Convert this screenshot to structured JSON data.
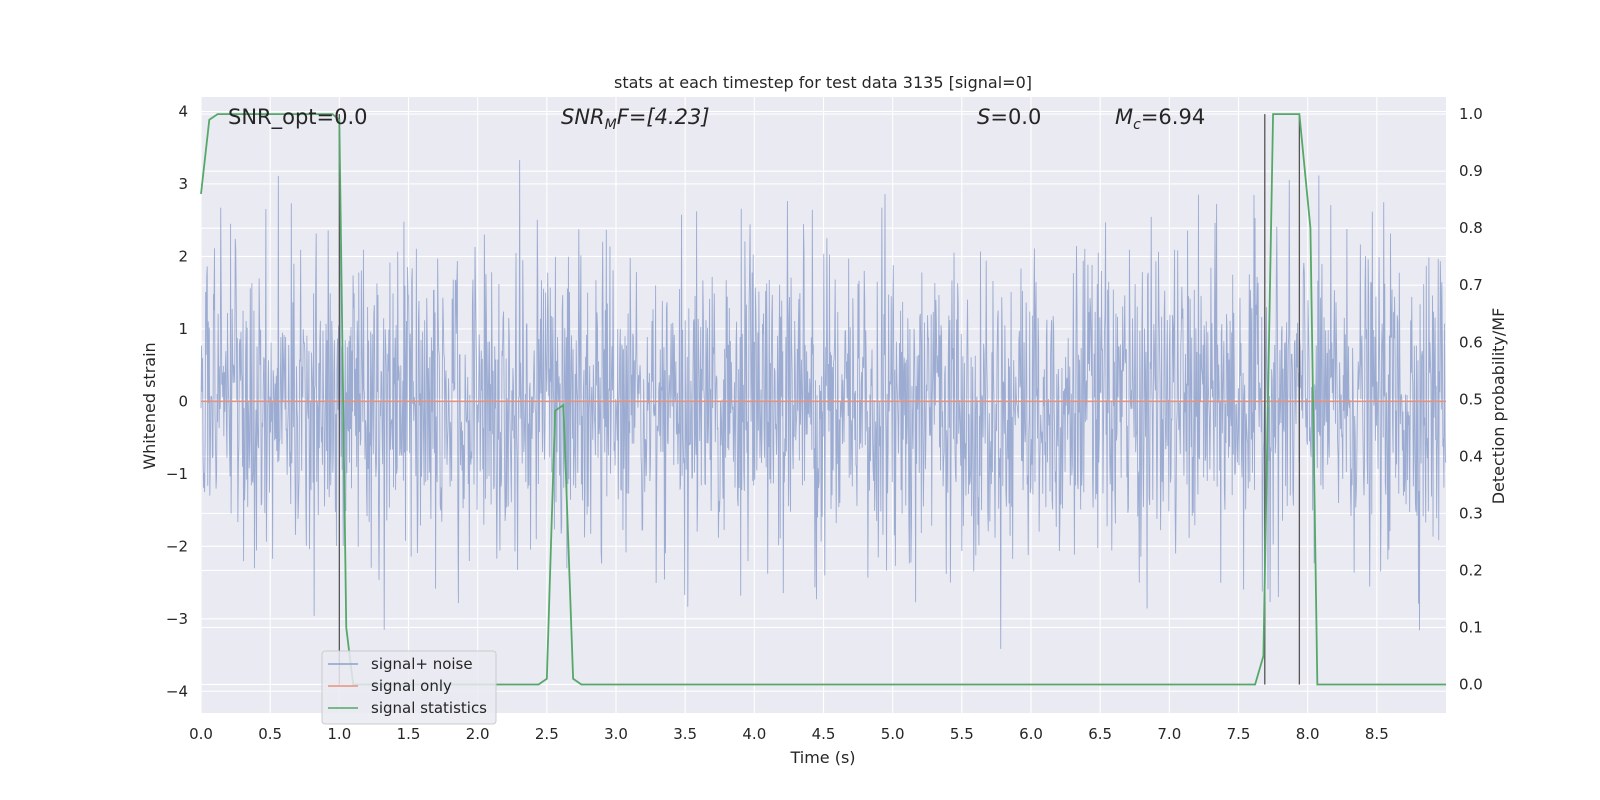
{
  "chart_data": {
    "type": "line",
    "title": "stats at each timestep for test data 3135 [signal=0]",
    "xlabel": "Time (s)",
    "ylabel": "Whitened strain",
    "y2label": "Detection probability/MF",
    "xlim": [
      0.0,
      9.0
    ],
    "ylim": [
      -4.3,
      4.2
    ],
    "y2lim": [
      -0.05,
      1.03
    ],
    "xticks": [
      "0.0",
      "0.5",
      "1.0",
      "1.5",
      "2.0",
      "2.5",
      "3.0",
      "3.5",
      "4.0",
      "4.5",
      "5.0",
      "5.5",
      "6.0",
      "6.5",
      "7.0",
      "7.5",
      "8.0",
      "8.5"
    ],
    "yticks": [
      "4",
      "3",
      "2",
      "1",
      "0",
      "−1",
      "−2",
      "−3",
      "−4"
    ],
    "y2ticks": [
      "1.0",
      "0.9",
      "0.8",
      "0.7",
      "0.6",
      "0.5",
      "0.4",
      "0.3",
      "0.2",
      "0.1",
      "0.0"
    ],
    "grid": true,
    "legend_position": "lower-left",
    "annotations": {
      "snr_opt": "SNR_opt=0.0",
      "snr_mf_sym": "SNR",
      "snr_mf_sub": "M",
      "snr_mf_rest": "F=[4.23]",
      "s_sym": "S",
      "s_rest": "=0.0",
      "mc_sym": "M",
      "mc_sub": "c",
      "mc_rest": "=6.94"
    },
    "series": [
      {
        "name": "signal+ noise",
        "color": "#8da0cb",
        "note": "whitened strain noise, spans roughly -4 to 4 over 0-9 s",
        "amplitude_range": [
          -4.0,
          4.0
        ]
      },
      {
        "name": "signal only",
        "color": "#e8927c",
        "x": [
          0.0,
          9.0
        ],
        "y": [
          0.0,
          0.0
        ]
      },
      {
        "name": "signal statistics",
        "color": "#55a868",
        "axis": "right",
        "x": [
          0.0,
          0.06,
          0.12,
          0.5,
          0.95,
          1.0,
          1.05,
          1.1,
          1.5,
          2.0,
          2.44,
          2.5,
          2.56,
          2.62,
          2.69,
          2.75,
          3.0,
          4.0,
          5.0,
          6.0,
          7.0,
          7.5,
          7.62,
          7.68,
          7.75,
          7.94,
          8.02,
          8.07,
          8.5,
          9.0
        ],
        "y": [
          0.86,
          0.99,
          1.0,
          1.0,
          1.0,
          0.99,
          0.1,
          0.0,
          0.0,
          0.0,
          0.0,
          0.01,
          0.48,
          0.49,
          0.01,
          0.0,
          0.0,
          0.0,
          0.0,
          0.0,
          0.0,
          0.0,
          0.0,
          0.05,
          1.0,
          1.0,
          0.8,
          0.0,
          0.0,
          0.0
        ]
      }
    ],
    "vlines_x": [
      1.0,
      7.69,
      7.94
    ]
  }
}
